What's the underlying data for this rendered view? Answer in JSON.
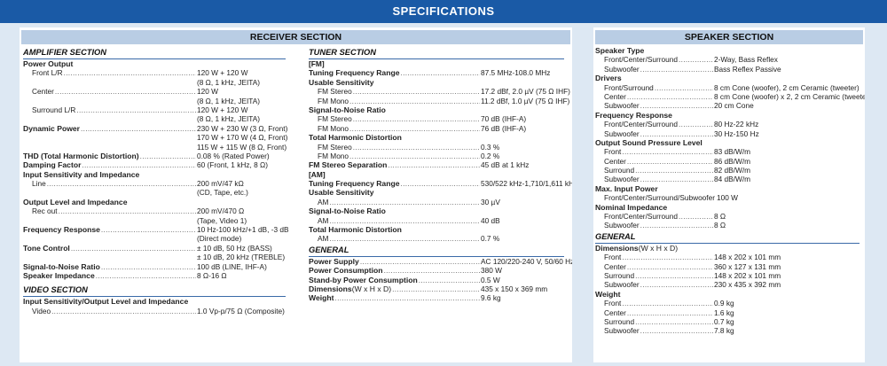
{
  "title": "SPECIFICATIONS",
  "receiver": {
    "heading": "RECEIVER SECTION",
    "columns": [
      [
        {
          "t": "sec",
          "label": "AMPLIFIER SECTION"
        },
        {
          "t": "h",
          "label": "Power Output"
        },
        {
          "t": "i",
          "label": "Front L/R",
          "value": "120 W + 120 W"
        },
        {
          "t": "c",
          "value": "(8 Ω, 1 kHz, JEITA)"
        },
        {
          "t": "i",
          "label": "Center",
          "value": "120 W"
        },
        {
          "t": "c",
          "value": "(8 Ω, 1 kHz, JEITA)"
        },
        {
          "t": "i",
          "label": "Surround L/R",
          "value": "120 W + 120 W"
        },
        {
          "t": "c",
          "value": "(8 Ω, 1 kHz, JEITA)"
        },
        {
          "t": "h",
          "label": "Dynamic Power",
          "value": "230 W + 230 W (3 Ω, Front)"
        },
        {
          "t": "c",
          "value": "170 W + 170 W (4 Ω, Front)"
        },
        {
          "t": "c",
          "value": "115 W + 115 W (8 Ω, Front)"
        },
        {
          "t": "h",
          "label": "THD (Total Harmonic Distortion)",
          "value": "0.08 % (Rated Power)"
        },
        {
          "t": "h",
          "label": "Damping Factor",
          "value": "60 (Front, 1 kHz, 8 Ω)"
        },
        {
          "t": "h",
          "label": "Input Sensitivity and Impedance"
        },
        {
          "t": "i",
          "label": "Line",
          "value": "200 mV/47 kΩ"
        },
        {
          "t": "c",
          "value": "(CD, Tape, etc.)"
        },
        {
          "t": "h",
          "label": "Output Level and Impedance"
        },
        {
          "t": "i",
          "label": "Rec out",
          "value": "200 mV/470 Ω"
        },
        {
          "t": "c",
          "value": "(Tape, Video 1)"
        },
        {
          "t": "h",
          "label": "Frequency Response",
          "value": "10 Hz-100 kHz/+1 dB, -3 dB"
        },
        {
          "t": "c",
          "value": "(Direct mode)"
        },
        {
          "t": "h",
          "label": "Tone Control",
          "value": "± 10 dB, 50 Hz (BASS)"
        },
        {
          "t": "c",
          "value": "± 10 dB, 20 kHz (TREBLE)"
        },
        {
          "t": "h",
          "label": "Signal-to-Noise Ratio",
          "value": "100 dB (LINE, IHF-A)"
        },
        {
          "t": "h",
          "label": "Speaker Impedance",
          "value": "8 Ω-16 Ω"
        },
        {
          "t": "gap"
        },
        {
          "t": "sec",
          "label": "VIDEO SECTION"
        },
        {
          "t": "h",
          "label": "Input Sensitivity/Output Level and Impedance"
        },
        {
          "t": "i",
          "label": "Video",
          "value": "1.0 Vp-p/75 Ω (Composite)"
        }
      ],
      [
        {
          "t": "sec",
          "label": "TUNER SECTION"
        },
        {
          "t": "sub",
          "label": "[FM]"
        },
        {
          "t": "h",
          "label": "Tuning Frequency Range",
          "value": "87.5 MHz-108.0 MHz"
        },
        {
          "t": "h",
          "label": "Usable Sensitivity"
        },
        {
          "t": "i",
          "label": "FM Stereo",
          "value": "17.2 dBf, 2.0 µV (75 Ω IHF)"
        },
        {
          "t": "i",
          "label": "FM Mono",
          "value": "11.2 dBf, 1.0 µV (75 Ω IHF)"
        },
        {
          "t": "h",
          "label": "Signal-to-Noise Ratio"
        },
        {
          "t": "i",
          "label": "FM Stereo",
          "value": "70 dB (IHF-A)"
        },
        {
          "t": "i",
          "label": "FM Mono",
          "value": "76 dB (IHF-A)"
        },
        {
          "t": "h",
          "label": "Total Harmonic Distortion"
        },
        {
          "t": "i",
          "label": "FM Stereo",
          "value": "0.3 %"
        },
        {
          "t": "i",
          "label": "FM Mono",
          "value": "0.2 %"
        },
        {
          "t": "h",
          "label": "FM Stereo Separation",
          "value": "45 dB at 1 kHz"
        },
        {
          "t": "sub",
          "label": "[AM]"
        },
        {
          "t": "h",
          "label": "Tuning Frequency Range",
          "value": "530/522 kHz-1,710/1,611 kHz"
        },
        {
          "t": "h",
          "label": "Usable Sensitivity"
        },
        {
          "t": "i",
          "label": "AM",
          "value": "30 µV"
        },
        {
          "t": "h",
          "label": "Signal-to-Noise Ratio"
        },
        {
          "t": "i",
          "label": "AM",
          "value": "40 dB"
        },
        {
          "t": "h",
          "label": "Total Harmonic Distortion"
        },
        {
          "t": "i",
          "label": "AM",
          "value": "0.7 %"
        },
        {
          "t": "sec",
          "label": "GENERAL"
        },
        {
          "t": "h",
          "label": "Power Supply",
          "value": "AC 120/220-240 V, 50/60 Hz"
        },
        {
          "t": "h",
          "label": "Power Consumption",
          "value": "380 W"
        },
        {
          "t": "h",
          "label": "Stand-by Power Consumption",
          "value": "0.5 W"
        },
        {
          "t": "h",
          "label": "Dimensions",
          "note": " (W x H x D)",
          "value": "435 x 150 x 369 mm"
        },
        {
          "t": "h",
          "label": "Weight",
          "value": "9.6 kg"
        }
      ]
    ]
  },
  "speaker": {
    "heading": "SPEAKER SECTION",
    "rows": [
      {
        "t": "h",
        "label": "Speaker Type"
      },
      {
        "t": "i",
        "label": "Front/Center/Surround",
        "value": "2-Way, Bass Reflex"
      },
      {
        "t": "i",
        "label": "Subwoofer",
        "value": "Bass Reflex Passive"
      },
      {
        "t": "h",
        "label": "Drivers"
      },
      {
        "t": "i",
        "label": "Front/Surround",
        "value": "8 cm Cone (woofer), 2 cm Ceramic (tweeter)"
      },
      {
        "t": "i",
        "label": "Center",
        "value": "8 cm Cone (woofer) x 2, 2 cm Ceramic (tweeter)"
      },
      {
        "t": "i",
        "label": "Subwoofer",
        "value": "20 cm Cone"
      },
      {
        "t": "h",
        "label": "Frequency Response"
      },
      {
        "t": "i",
        "label": "Front/Center/Surround",
        "value": "80 Hz-22 kHz"
      },
      {
        "t": "i",
        "label": "Subwoofer",
        "value": "30 Hz-150 Hz"
      },
      {
        "t": "h",
        "label": "Output Sound Pressure Level"
      },
      {
        "t": "i",
        "label": "Front",
        "value": "83 dB/W/m"
      },
      {
        "t": "i",
        "label": "Center",
        "value": "86 dB/W/m"
      },
      {
        "t": "i",
        "label": "Surround",
        "value": "82 dB/W/m"
      },
      {
        "t": "i",
        "label": "Subwoofer",
        "value": "84 dB/W/m"
      },
      {
        "t": "h",
        "label": "Max. Input Power"
      },
      {
        "t": "i",
        "label": "Front/Center/Surround/Subwoofer",
        "value": "100 W"
      },
      {
        "t": "h",
        "label": "Nominal Impedance"
      },
      {
        "t": "i",
        "label": "Front/Center/Surround",
        "value": "8 Ω"
      },
      {
        "t": "i",
        "label": "Subwoofer",
        "value": "8 Ω"
      },
      {
        "t": "sec",
        "label": "GENERAL"
      },
      {
        "t": "h",
        "label": "Dimensions",
        "note": " (W x H x D)"
      },
      {
        "t": "i",
        "label": "Front",
        "value": "148 x 202 x 101 mm"
      },
      {
        "t": "i",
        "label": "Center",
        "value": "360 x 127 x 131 mm"
      },
      {
        "t": "i",
        "label": "Surround",
        "value": "148 x 202 x 101 mm"
      },
      {
        "t": "i",
        "label": "Subwoofer",
        "value": "230 x 435 x 392 mm"
      },
      {
        "t": "h",
        "label": "Weight"
      },
      {
        "t": "i",
        "label": "Front",
        "value": "0.9 kg"
      },
      {
        "t": "i",
        "label": "Center",
        "value": "1.6 kg"
      },
      {
        "t": "i",
        "label": "Surround",
        "value": "0.7 kg"
      },
      {
        "t": "i",
        "label": "Subwoofer",
        "value": "7.8 kg"
      }
    ]
  }
}
